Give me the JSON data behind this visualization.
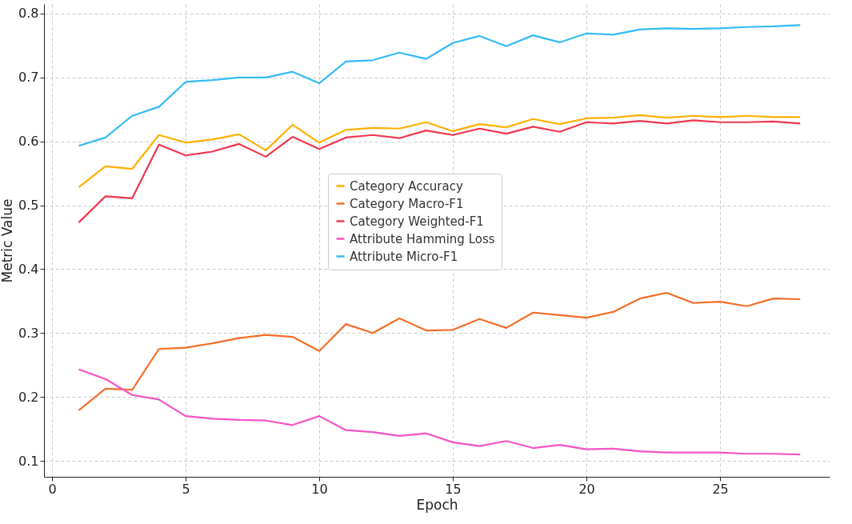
{
  "chart_data": {
    "type": "line",
    "xlabel": "Epoch",
    "ylabel": "Metric Value",
    "x": [
      1,
      2,
      3,
      4,
      5,
      6,
      7,
      8,
      9,
      10,
      11,
      12,
      13,
      14,
      15,
      16,
      17,
      18,
      19,
      20,
      21,
      22,
      23,
      24,
      25,
      26,
      27,
      28
    ],
    "xlim": [
      -0.3,
      29.1
    ],
    "ylim": [
      0.075,
      0.815
    ],
    "xticks": [
      0,
      5,
      10,
      15,
      20,
      25
    ],
    "yticks": [
      0.1,
      0.2,
      0.3,
      0.4,
      0.5,
      0.6,
      0.7,
      0.8
    ],
    "grid": true,
    "legend": "center",
    "series": [
      {
        "name": "Category Accuracy",
        "color": "#ffb000",
        "values": [
          0.528,
          0.561,
          0.557,
          0.61,
          0.598,
          0.603,
          0.611,
          0.586,
          0.626,
          0.598,
          0.618,
          0.621,
          0.62,
          0.63,
          0.616,
          0.627,
          0.622,
          0.635,
          0.627,
          0.636,
          0.637,
          0.641,
          0.637,
          0.64,
          0.638,
          0.64,
          0.638,
          0.638
        ]
      },
      {
        "name": "Category Macro-F1",
        "color": "#f46d27",
        "values": [
          0.179,
          0.213,
          0.211,
          0.275,
          0.277,
          0.284,
          0.292,
          0.297,
          0.294,
          0.272,
          0.314,
          0.3,
          0.323,
          0.304,
          0.305,
          0.322,
          0.308,
          0.332,
          0.328,
          0.324,
          0.333,
          0.354,
          0.363,
          0.347,
          0.349,
          0.342,
          0.354,
          0.353
        ]
      },
      {
        "name": "Category Weighted-F1",
        "color": "#f0364e",
        "values": [
          0.473,
          0.514,
          0.511,
          0.595,
          0.578,
          0.584,
          0.596,
          0.576,
          0.607,
          0.588,
          0.606,
          0.61,
          0.605,
          0.617,
          0.61,
          0.62,
          0.612,
          0.623,
          0.615,
          0.63,
          0.628,
          0.632,
          0.628,
          0.633,
          0.63,
          0.63,
          0.631,
          0.628
        ]
      },
      {
        "name": "Attribute Hamming Loss",
        "color": "#f453c4",
        "values": [
          0.243,
          0.228,
          0.203,
          0.196,
          0.17,
          0.166,
          0.164,
          0.163,
          0.156,
          0.17,
          0.148,
          0.145,
          0.139,
          0.143,
          0.129,
          0.123,
          0.131,
          0.12,
          0.125,
          0.118,
          0.119,
          0.115,
          0.113,
          0.113,
          0.113,
          0.111,
          0.111,
          0.11
        ]
      },
      {
        "name": "Attribute Micro-F1",
        "color": "#33bbf6",
        "values": [
          0.593,
          0.606,
          0.64,
          0.654,
          0.693,
          0.696,
          0.7,
          0.7,
          0.709,
          0.691,
          0.725,
          0.727,
          0.739,
          0.729,
          0.754,
          0.765,
          0.749,
          0.766,
          0.755,
          0.769,
          0.767,
          0.775,
          0.777,
          0.776,
          0.777,
          0.779,
          0.78,
          0.782
        ]
      }
    ]
  }
}
